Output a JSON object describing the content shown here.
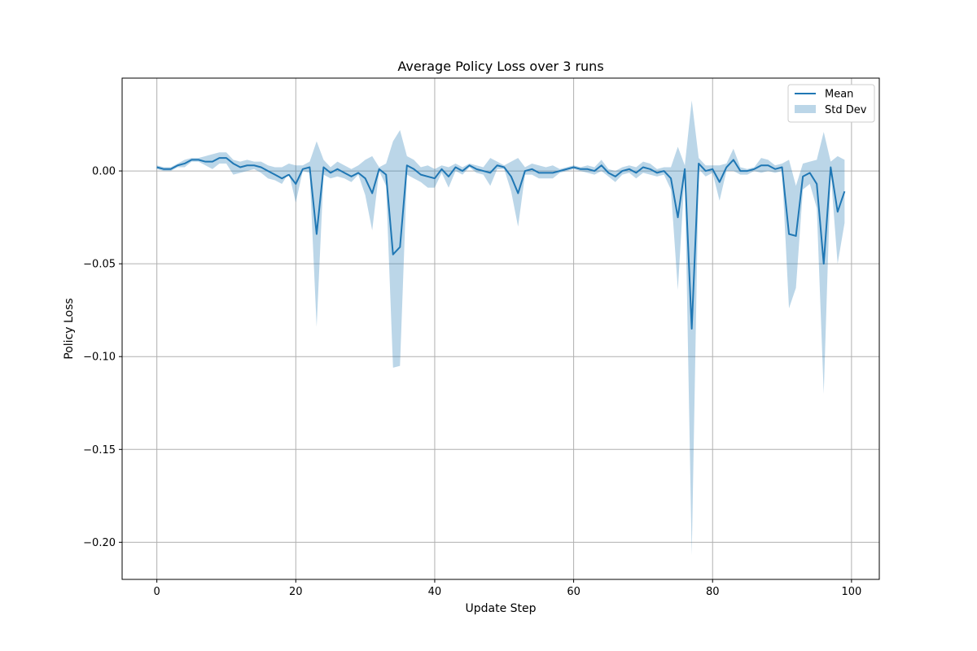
{
  "chart_data": {
    "type": "line",
    "title": "Average Policy Loss over 3 runs",
    "xlabel": "Update Step",
    "ylabel": "Policy Loss",
    "xlim": [
      -5,
      104
    ],
    "ylim": [
      -0.22,
      0.05
    ],
    "xticks": [
      0,
      20,
      40,
      60,
      80,
      100
    ],
    "xtick_labels": [
      "0",
      "20",
      "40",
      "60",
      "80",
      "100"
    ],
    "yticks": [
      0.0,
      -0.05,
      -0.1,
      -0.15,
      -0.2
    ],
    "ytick_labels": [
      "0.00",
      "−0.05",
      "−0.10",
      "−0.15",
      "−0.20"
    ],
    "grid": true,
    "legend_position": "top-right",
    "colors": {
      "mean": "#1f77b4",
      "band": "#1f77b4"
    },
    "series": [
      {
        "name": "Mean",
        "x": [
          0,
          1,
          2,
          3,
          4,
          5,
          6,
          7,
          8,
          9,
          10,
          11,
          12,
          13,
          14,
          15,
          16,
          17,
          18,
          19,
          20,
          21,
          22,
          23,
          24,
          25,
          26,
          27,
          28,
          29,
          30,
          31,
          32,
          33,
          34,
          35,
          36,
          37,
          38,
          39,
          40,
          41,
          42,
          43,
          44,
          45,
          46,
          47,
          48,
          49,
          50,
          51,
          52,
          53,
          54,
          55,
          56,
          57,
          58,
          59,
          60,
          61,
          62,
          63,
          64,
          65,
          66,
          67,
          68,
          69,
          70,
          71,
          72,
          73,
          74,
          75,
          76,
          77,
          78,
          79,
          80,
          81,
          82,
          83,
          84,
          85,
          86,
          87,
          88,
          89,
          90,
          91,
          92,
          93,
          94,
          95,
          96,
          97,
          98,
          99
        ],
        "y": [
          0.002,
          0.001,
          0.001,
          0.003,
          0.004,
          0.006,
          0.006,
          0.005,
          0.005,
          0.007,
          0.007,
          0.004,
          0.002,
          0.003,
          0.003,
          0.002,
          0.0,
          -0.002,
          -0.004,
          -0.002,
          -0.007,
          0.001,
          0.002,
          -0.034,
          0.002,
          -0.001,
          0.001,
          -0.001,
          -0.003,
          -0.001,
          -0.004,
          -0.012,
          0.001,
          -0.002,
          -0.045,
          -0.041,
          0.003,
          0.001,
          -0.002,
          -0.003,
          -0.004,
          0.001,
          -0.003,
          0.002,
          0.0,
          0.003,
          0.001,
          0.0,
          -0.001,
          0.003,
          0.002,
          -0.003,
          -0.012,
          0.0,
          0.001,
          -0.001,
          -0.001,
          -0.001,
          0.0,
          0.001,
          0.002,
          0.001,
          0.001,
          0.0,
          0.003,
          -0.001,
          -0.003,
          0.0,
          0.001,
          -0.001,
          0.002,
          0.001,
          -0.001,
          0.0,
          -0.004,
          -0.025,
          0.001,
          -0.085,
          0.004,
          0.0,
          0.001,
          -0.006,
          0.002,
          0.006,
          0.0,
          0.0,
          0.001,
          0.003,
          0.003,
          0.001,
          0.002,
          -0.034,
          -0.035,
          -0.003,
          -0.001,
          -0.007,
          -0.05,
          0.002,
          -0.022,
          -0.011
        ]
      },
      {
        "name": "Std Dev",
        "type": "band",
        "x": [
          0,
          1,
          2,
          3,
          4,
          5,
          6,
          7,
          8,
          9,
          10,
          11,
          12,
          13,
          14,
          15,
          16,
          17,
          18,
          19,
          20,
          21,
          22,
          23,
          24,
          25,
          26,
          27,
          28,
          29,
          30,
          31,
          32,
          33,
          34,
          35,
          36,
          37,
          38,
          39,
          40,
          41,
          42,
          43,
          44,
          45,
          46,
          47,
          48,
          49,
          50,
          51,
          52,
          53,
          54,
          55,
          56,
          57,
          58,
          59,
          60,
          61,
          62,
          63,
          64,
          65,
          66,
          67,
          68,
          69,
          70,
          71,
          72,
          73,
          74,
          75,
          76,
          77,
          78,
          79,
          80,
          81,
          82,
          83,
          84,
          85,
          86,
          87,
          88,
          89,
          90,
          91,
          92,
          93,
          94,
          95,
          96,
          97,
          98,
          99
        ],
        "upper": [
          0.003,
          0.002,
          0.002,
          0.004,
          0.006,
          0.007,
          0.007,
          0.008,
          0.009,
          0.01,
          0.01,
          0.006,
          0.005,
          0.006,
          0.005,
          0.005,
          0.003,
          0.002,
          0.002,
          0.004,
          0.003,
          0.003,
          0.005,
          0.016,
          0.006,
          0.002,
          0.005,
          0.003,
          0.001,
          0.003,
          0.006,
          0.008,
          0.002,
          0.004,
          0.016,
          0.022,
          0.008,
          0.006,
          0.002,
          0.003,
          0.001,
          0.003,
          0.002,
          0.004,
          0.002,
          0.004,
          0.003,
          0.002,
          0.007,
          0.005,
          0.003,
          0.005,
          0.007,
          0.002,
          0.004,
          0.003,
          0.002,
          0.003,
          0.001,
          0.002,
          0.003,
          0.002,
          0.003,
          0.002,
          0.006,
          0.001,
          0.0,
          0.002,
          0.003,
          0.002,
          0.005,
          0.004,
          0.001,
          0.002,
          0.002,
          0.013,
          0.003,
          0.038,
          0.007,
          0.003,
          0.003,
          0.003,
          0.004,
          0.012,
          0.002,
          0.001,
          0.002,
          0.007,
          0.006,
          0.003,
          0.004,
          0.006,
          -0.008,
          0.004,
          0.005,
          0.006,
          0.021,
          0.005,
          0.008,
          0.006
        ],
        "lower": [
          0.001,
          0.0,
          0.0,
          0.002,
          0.002,
          0.005,
          0.005,
          0.003,
          0.001,
          0.004,
          0.004,
          -0.002,
          -0.001,
          0.0,
          0.001,
          -0.001,
          -0.004,
          -0.005,
          -0.007,
          -0.001,
          -0.017,
          0.0,
          -0.001,
          -0.084,
          -0.002,
          -0.004,
          -0.003,
          -0.004,
          -0.006,
          -0.002,
          -0.013,
          -0.032,
          0.0,
          -0.008,
          -0.106,
          -0.105,
          -0.002,
          -0.004,
          -0.006,
          -0.009,
          -0.009,
          -0.001,
          -0.009,
          0.0,
          -0.002,
          0.002,
          -0.001,
          -0.002,
          -0.008,
          0.001,
          0.001,
          -0.011,
          -0.03,
          -0.002,
          -0.002,
          -0.004,
          -0.004,
          -0.004,
          -0.001,
          0.0,
          0.001,
          0.0,
          -0.001,
          -0.002,
          0.0,
          -0.003,
          -0.006,
          -0.002,
          -0.001,
          -0.004,
          -0.001,
          -0.002,
          -0.003,
          -0.002,
          -0.01,
          -0.064,
          -0.001,
          -0.207,
          0.001,
          -0.003,
          -0.001,
          -0.016,
          0.0,
          0.0,
          -0.002,
          -0.002,
          0.0,
          -0.001,
          0.0,
          -0.001,
          0.0,
          -0.074,
          -0.063,
          -0.01,
          -0.007,
          -0.02,
          -0.12,
          -0.001,
          -0.05,
          -0.028
        ]
      }
    ]
  }
}
